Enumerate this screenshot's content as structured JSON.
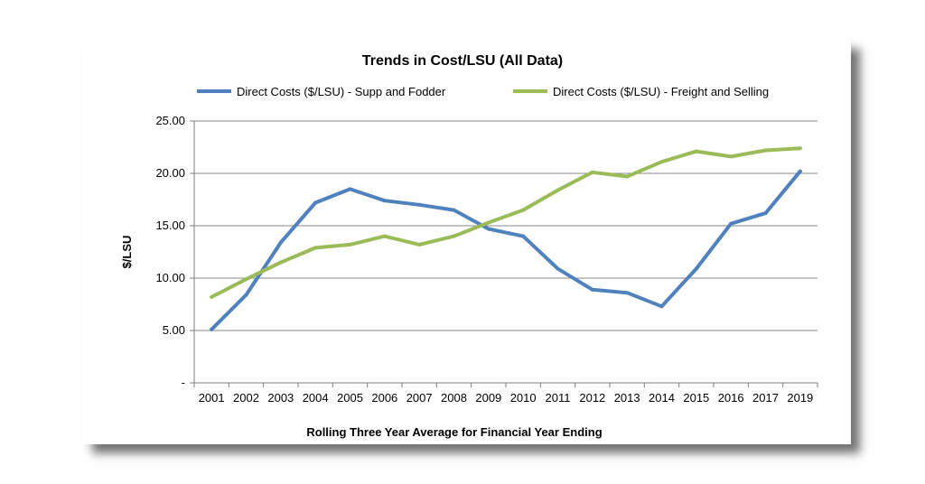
{
  "chart_data": {
    "type": "line",
    "title": "Trends in Cost/LSU (All Data)",
    "xlabel": "Rolling Three Year Average for Financial Year Ending",
    "ylabel": "$/LSU",
    "categories": [
      "2001",
      "2002",
      "2003",
      "2004",
      "2005",
      "2006",
      "2007",
      "2008",
      "2009",
      "2010",
      "2011",
      "2012",
      "2013",
      "2014",
      "2015",
      "2016",
      "2017",
      "2019"
    ],
    "y_tick_labels": [
      "-",
      "5.00",
      "10.00",
      "15.00",
      "20.00",
      "25.00"
    ],
    "ylim": [
      0,
      25
    ],
    "grid": true,
    "legend_position": "top",
    "series": [
      {
        "name": "Direct Costs ($/LSU) - Supp and Fodder",
        "color": "#4f81bd",
        "values": [
          5.1,
          8.4,
          13.4,
          17.2,
          18.5,
          17.4,
          17.0,
          16.5,
          14.7,
          14.0,
          10.9,
          8.9,
          8.6,
          7.3,
          10.9,
          15.2,
          16.2,
          20.2
        ]
      },
      {
        "name": "Direct Costs ($/LSU) - Freight and Selling",
        "color": "#9bbb59",
        "values": [
          8.2,
          9.9,
          11.5,
          12.9,
          13.2,
          14.0,
          13.2,
          14.0,
          15.3,
          16.5,
          18.4,
          20.1,
          19.7,
          21.1,
          22.1,
          21.6,
          22.2,
          22.4
        ]
      }
    ]
  }
}
